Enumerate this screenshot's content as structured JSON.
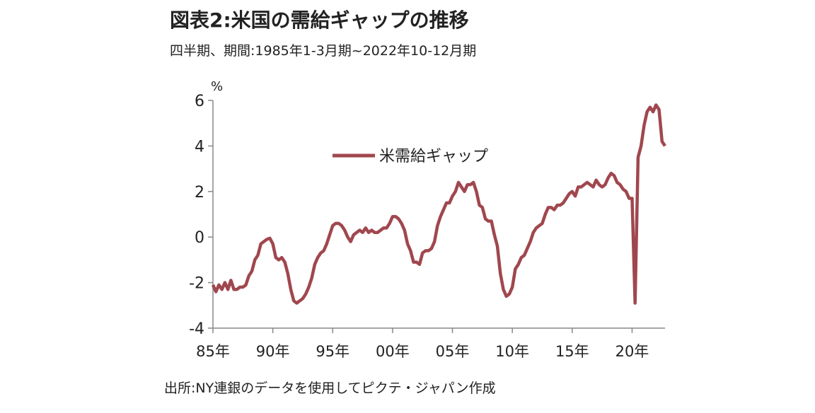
{
  "chart_data": {
    "type": "line",
    "title": "図表2:米国の需給ギャップの推移",
    "subtitle": "四半期、期間:1985年1-3月期~2022年10-12月期",
    "y_label": "%",
    "source": "出所:NY連銀のデータを使用してピクテ・ジャパン作成",
    "legend": "upper-center",
    "categories": [
      "85年",
      null,
      null,
      null,
      null,
      null,
      null,
      null,
      null,
      null,
      null,
      null,
      null,
      null,
      null,
      null,
      null,
      null,
      null,
      null,
      "90年",
      null,
      null,
      null,
      null,
      null,
      null,
      null,
      null,
      null,
      null,
      null,
      null,
      null,
      null,
      null,
      null,
      null,
      null,
      null,
      "95年",
      null,
      null,
      null,
      null,
      null,
      null,
      null,
      null,
      null,
      null,
      null,
      null,
      null,
      null,
      null,
      null,
      null,
      null,
      null,
      "00年",
      null,
      null,
      null,
      null,
      null,
      null,
      null,
      null,
      null,
      null,
      null,
      null,
      null,
      null,
      null,
      null,
      null,
      null,
      null,
      "05年",
      null,
      null,
      null,
      null,
      null,
      null,
      null,
      null,
      null,
      null,
      null,
      null,
      null,
      null,
      null,
      null,
      null,
      null,
      null,
      "10年",
      null,
      null,
      null,
      null,
      null,
      null,
      null,
      null,
      null,
      null,
      null,
      null,
      null,
      null,
      null,
      null,
      null,
      null,
      null,
      "15年",
      null,
      null,
      null,
      null,
      null,
      null,
      null,
      null,
      null,
      null,
      null,
      null,
      null,
      null,
      null,
      null,
      null,
      null,
      null,
      "20年",
      null,
      null,
      null,
      null,
      null,
      null,
      null,
      null,
      null,
      null,
      null
    ],
    "series": [
      {
        "name": "米需給ギャップ",
        "color": "#a0474e",
        "values": [
          -2.1,
          -2.4,
          -2.1,
          -2.3,
          -2.0,
          -2.3,
          -1.9,
          -2.3,
          -2.3,
          -2.2,
          -2.2,
          -2.1,
          -1.7,
          -1.5,
          -1.0,
          -0.8,
          -0.3,
          -0.2,
          -0.1,
          -0.05,
          -0.3,
          -0.9,
          -1.0,
          -0.9,
          -1.1,
          -1.6,
          -2.3,
          -2.8,
          -2.9,
          -2.8,
          -2.7,
          -2.5,
          -2.2,
          -1.8,
          -1.2,
          -0.9,
          -0.7,
          -0.6,
          -0.3,
          0.1,
          0.5,
          0.6,
          0.6,
          0.5,
          0.3,
          0.0,
          -0.2,
          0.1,
          0.2,
          0.3,
          0.2,
          0.4,
          0.2,
          0.3,
          0.2,
          0.2,
          0.3,
          0.4,
          0.4,
          0.6,
          0.9,
          0.9,
          0.8,
          0.6,
          0.3,
          -0.3,
          -0.6,
          -1.1,
          -1.1,
          -1.2,
          -0.7,
          -0.6,
          -0.6,
          -0.5,
          -0.2,
          0.5,
          0.9,
          1.2,
          1.5,
          1.5,
          1.8,
          2.0,
          2.4,
          2.2,
          2.0,
          2.3,
          2.3,
          2.4,
          2.0,
          1.4,
          1.3,
          0.8,
          0.7,
          0.7,
          0.1,
          -0.4,
          -1.6,
          -2.3,
          -2.6,
          -2.5,
          -2.2,
          -1.4,
          -1.2,
          -0.9,
          -0.8,
          -0.5,
          -0.2,
          0.2,
          0.4,
          0.5,
          0.6,
          1.0,
          1.3,
          1.3,
          1.2,
          1.4,
          1.4,
          1.5,
          1.7,
          1.9,
          2.0,
          1.8,
          2.2,
          2.2,
          2.3,
          2.4,
          2.3,
          2.2,
          2.5,
          2.3,
          2.2,
          2.3,
          2.6,
          2.8,
          2.7,
          2.4,
          2.3,
          2.1,
          2.0,
          1.7,
          1.7,
          -2.9,
          3.5,
          4.0,
          4.9,
          5.5,
          5.7,
          5.5,
          5.8,
          5.6,
          4.2,
          4.0
        ]
      }
    ],
    "ylim": [
      -4,
      6
    ],
    "yticks": [
      -4,
      -2,
      0,
      2,
      4,
      6
    ],
    "grid": false
  }
}
